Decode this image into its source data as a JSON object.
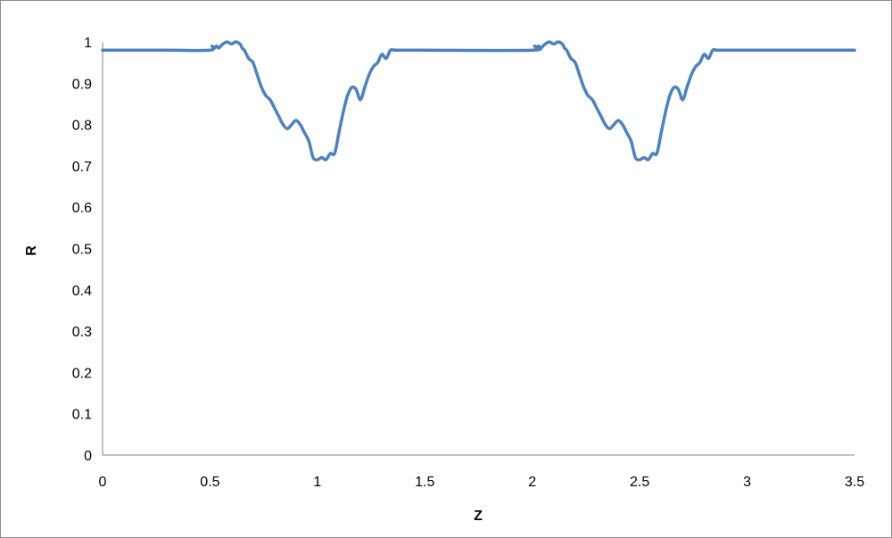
{
  "chart_data": {
    "type": "line",
    "title": "",
    "xlabel": "Z",
    "ylabel": "R",
    "xlim": [
      0,
      3.5
    ],
    "ylim": [
      0,
      1
    ],
    "x_ticks": [
      "0",
      "0.5",
      "1",
      "1.5",
      "2",
      "2.5",
      "3",
      "3.5"
    ],
    "y_ticks": [
      "0",
      "0.1",
      "0.2",
      "0.3",
      "0.4",
      "0.5",
      "0.6",
      "0.7",
      "0.8",
      "0.9",
      "1"
    ],
    "grid": false,
    "legend": "none",
    "series": [
      {
        "color": "#4f81bd",
        "x": [
          0,
          0.3,
          0.5,
          0.51,
          0.52,
          0.53,
          0.54,
          0.55,
          0.56,
          0.58,
          0.6,
          0.62,
          0.64,
          0.65,
          0.66,
          0.68,
          0.7,
          0.72,
          0.74,
          0.76,
          0.78,
          0.8,
          0.82,
          0.84,
          0.86,
          0.88,
          0.9,
          0.92,
          0.94,
          0.96,
          0.98,
          1.0,
          1.02,
          1.04,
          1.06,
          1.08,
          1.1,
          1.12,
          1.14,
          1.16,
          1.18,
          1.2,
          1.22,
          1.24,
          1.26,
          1.28,
          1.3,
          1.32,
          1.34,
          1.36,
          1.38,
          1.4,
          1.42,
          1.44,
          1.46,
          1.48,
          1.5,
          2.0,
          2.01,
          2.02,
          2.03,
          2.04,
          2.05,
          2.06,
          2.08,
          2.1,
          2.12,
          2.14,
          2.15,
          2.16,
          2.18,
          2.2,
          2.22,
          2.24,
          2.26,
          2.28,
          2.3,
          2.32,
          2.34,
          2.36,
          2.38,
          2.4,
          2.42,
          2.44,
          2.46,
          2.48,
          2.5,
          2.52,
          2.54,
          2.56,
          2.58,
          2.6,
          2.62,
          2.64,
          2.66,
          2.68,
          2.7,
          2.72,
          2.74,
          2.76,
          2.78,
          2.8,
          2.82,
          2.84,
          2.86,
          2.88,
          2.9,
          2.92,
          2.94,
          2.96,
          2.98,
          3.0,
          3.5
        ],
        "values": [
          0.98,
          0.98,
          0.98,
          0.99,
          0.985,
          0.99,
          0.985,
          0.99,
          0.995,
          1.0,
          0.995,
          1.0,
          0.995,
          0.985,
          0.98,
          0.96,
          0.95,
          0.92,
          0.89,
          0.87,
          0.86,
          0.84,
          0.82,
          0.8,
          0.79,
          0.8,
          0.81,
          0.8,
          0.78,
          0.76,
          0.72,
          0.715,
          0.72,
          0.715,
          0.73,
          0.73,
          0.78,
          0.83,
          0.87,
          0.89,
          0.885,
          0.86,
          0.89,
          0.92,
          0.94,
          0.95,
          0.97,
          0.96,
          0.98,
          0.98,
          0.98,
          0.98,
          0.98,
          0.98,
          0.98,
          0.98,
          0.98,
          0.98,
          0.99,
          0.985,
          0.99,
          0.985,
          0.99,
          0.995,
          1.0,
          0.995,
          1.0,
          0.995,
          0.985,
          0.98,
          0.96,
          0.95,
          0.92,
          0.89,
          0.87,
          0.86,
          0.84,
          0.82,
          0.8,
          0.79,
          0.8,
          0.81,
          0.8,
          0.78,
          0.76,
          0.72,
          0.715,
          0.72,
          0.715,
          0.73,
          0.73,
          0.78,
          0.83,
          0.87,
          0.89,
          0.885,
          0.86,
          0.89,
          0.92,
          0.94,
          0.95,
          0.97,
          0.96,
          0.98,
          0.98,
          0.98,
          0.98,
          0.98,
          0.98,
          0.98,
          0.98,
          0.98,
          0.98
        ]
      }
    ]
  }
}
